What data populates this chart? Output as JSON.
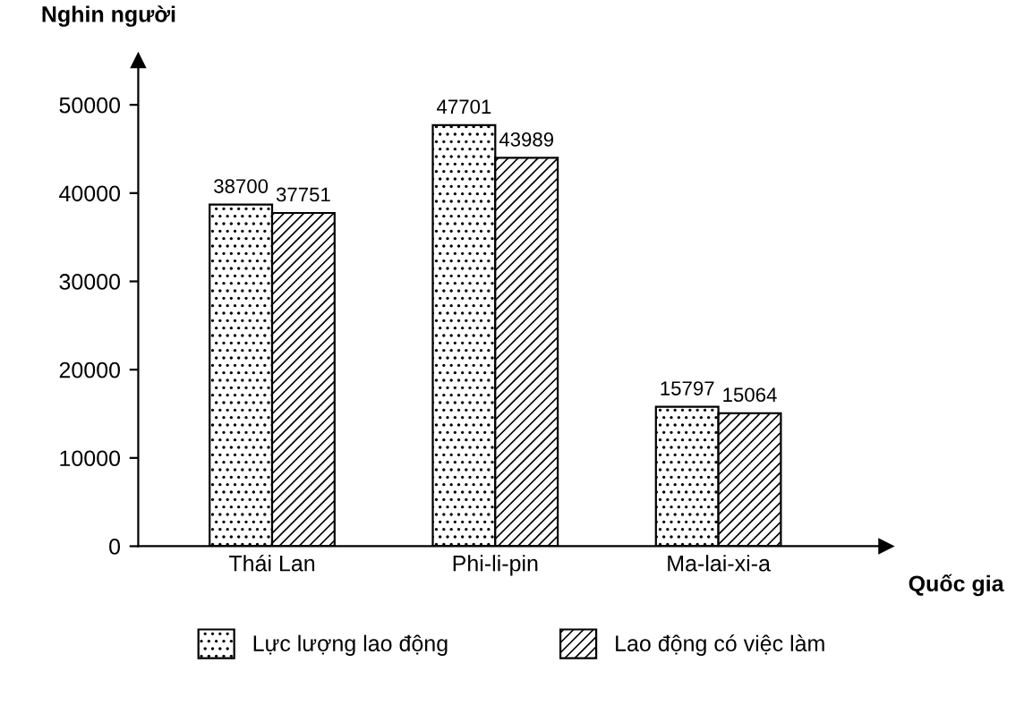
{
  "chart_data": {
    "type": "bar",
    "xlabel": "Quốc gia",
    "ylabel": "Nghin người",
    "categories": [
      "Thái Lan",
      "Phi-li-pin",
      "Ma-lai-xi-a"
    ],
    "series": [
      {
        "name": "Lực lượng lao động",
        "color": "#000000",
        "values": [
          38700,
          47701,
          15797
        ]
      },
      {
        "name": "Lao động có việc làm",
        "color": "#000000",
        "values": [
          37751,
          43989,
          15064
        ]
      }
    ],
    "ylim": [
      0,
      55000
    ],
    "yticks": [
      0,
      10000,
      20000,
      30000,
      40000,
      50000
    ],
    "data_labels": true,
    "legend": "bottom",
    "grid": false
  }
}
